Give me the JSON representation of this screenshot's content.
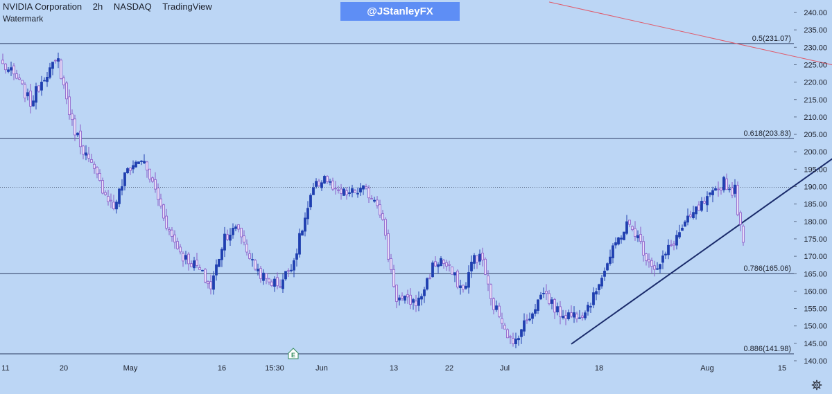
{
  "header": {
    "symbol": "NVIDIA Corporation",
    "interval": "2h",
    "exchange": "NASDAQ",
    "source": "TradingView",
    "indicator_label": "Watermark"
  },
  "watermark_handle": "@JStanleyFX",
  "colors": {
    "background": "#bcd6f5",
    "candle_up": "#1f3fb0",
    "candle_down": "#8a5cc8",
    "fib_line": "#2a3960",
    "trendline": "#1a2b6b",
    "resistance_line": "#e05a6a",
    "handle_box": "#5e8ef5"
  },
  "chart_data": {
    "type": "candlestick",
    "y_axis": {
      "min": 138,
      "max": 243,
      "ticks": [
        "240.00",
        "235.00",
        "230.00",
        "225.00",
        "220.00",
        "215.00",
        "210.00",
        "205.00",
        "200.00",
        "195.00",
        "190.00",
        "185.00",
        "180.00",
        "175.00",
        "170.00",
        "165.00",
        "160.00",
        "155.00",
        "150.00",
        "145.00",
        "140.00"
      ]
    },
    "x_axis": {
      "ticks": [
        "11",
        "20",
        "May",
        "16",
        "15:30",
        "Jun",
        "13",
        "22",
        "Jul",
        "18",
        "Aug",
        "15"
      ],
      "tick_bars": [
        1,
        22,
        46,
        79,
        98,
        115,
        141,
        161,
        181,
        215,
        254,
        281
      ],
      "total_bars": 300
    },
    "fib_levels": [
      {
        "label": "0.5(231.07)",
        "value": 231.07
      },
      {
        "label": "0.618(203.83)",
        "value": 203.83
      },
      {
        "label": "0.786(165.06)",
        "value": 165.06
      },
      {
        "label": "0.886(141.98)",
        "value": 141.98
      }
    ],
    "dotted_level": 189.8,
    "trendline": {
      "start": {
        "bar": 205,
        "price": 144.8
      },
      "end": {
        "bar": 300,
        "price": 198.5
      }
    },
    "resistance_line": {
      "start": {
        "bar": 197,
        "price": 243
      },
      "end": {
        "bar": 300,
        "price": 224.8
      }
    },
    "anchors": [
      [
        0,
        225
      ],
      [
        5,
        221
      ],
      [
        10,
        214
      ],
      [
        15,
        222
      ],
      [
        20,
        226
      ],
      [
        25,
        208
      ],
      [
        30,
        199
      ],
      [
        35,
        191
      ],
      [
        40,
        184
      ],
      [
        45,
        195
      ],
      [
        50,
        198
      ],
      [
        55,
        189
      ],
      [
        60,
        177
      ],
      [
        65,
        170
      ],
      [
        70,
        167
      ],
      [
        75,
        161
      ],
      [
        80,
        176
      ],
      [
        85,
        178
      ],
      [
        90,
        168
      ],
      [
        95,
        163
      ],
      [
        100,
        162
      ],
      [
        105,
        169
      ],
      [
        108,
        178
      ],
      [
        112,
        189
      ],
      [
        116,
        193
      ],
      [
        120,
        188
      ],
      [
        125,
        188
      ],
      [
        130,
        189
      ],
      [
        135,
        186
      ],
      [
        137,
        180
      ],
      [
        139,
        170
      ],
      [
        142,
        158
      ],
      [
        146,
        157
      ],
      [
        150,
        157
      ],
      [
        155,
        167
      ],
      [
        158,
        169
      ],
      [
        162,
        165
      ],
      [
        166,
        160
      ],
      [
        170,
        170
      ],
      [
        173,
        169
      ],
      [
        176,
        157
      ],
      [
        180,
        152
      ],
      [
        184,
        144
      ],
      [
        186,
        148
      ],
      [
        190,
        153
      ],
      [
        195,
        160
      ],
      [
        200,
        154
      ],
      [
        205,
        153
      ],
      [
        209,
        154
      ],
      [
        213,
        158
      ],
      [
        215,
        163
      ],
      [
        218,
        168
      ],
      [
        222,
        175
      ],
      [
        225,
        179
      ],
      [
        228,
        177
      ],
      [
        232,
        170
      ],
      [
        236,
        166
      ],
      [
        240,
        172
      ],
      [
        245,
        178
      ],
      [
        250,
        183
      ],
      [
        254,
        186
      ],
      [
        258,
        189
      ],
      [
        260,
        192
      ],
      [
        262,
        189
      ],
      [
        264,
        189
      ],
      [
        266,
        178
      ],
      [
        267,
        174
      ]
    ]
  }
}
